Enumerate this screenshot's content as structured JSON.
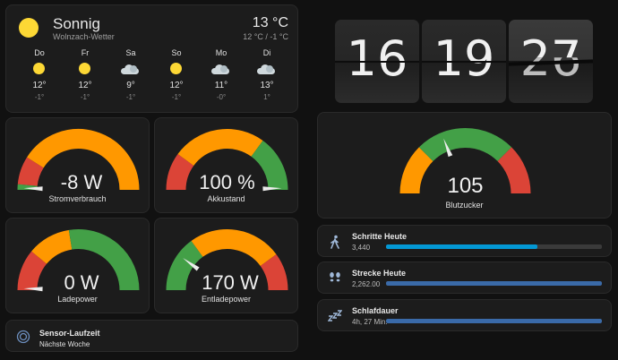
{
  "weather": {
    "condition": "Sonnig",
    "source": "Wolnzach-Wetter",
    "temperature": "13 °C",
    "range": "12 °C / -1 °C",
    "forecast": [
      {
        "day": "Do",
        "icon": "sun-icon",
        "high": "12°",
        "low": "-1°"
      },
      {
        "day": "Fr",
        "icon": "sun-icon",
        "high": "12°",
        "low": "-1°"
      },
      {
        "day": "Sa",
        "icon": "partly-cloudy-icon",
        "high": "9°",
        "low": "-1°"
      },
      {
        "day": "So",
        "icon": "sun-icon",
        "high": "12°",
        "low": "-1°"
      },
      {
        "day": "Mo",
        "icon": "partly-cloudy-icon",
        "high": "11°",
        "low": "-0°"
      },
      {
        "day": "Di",
        "icon": "partly-cloudy-icon",
        "high": "13°",
        "low": "1°"
      }
    ]
  },
  "clock": {
    "hours": "16",
    "minutes": "19",
    "seconds": "27",
    "seconds_prev": "26"
  },
  "gauges": {
    "stromverbrauch": {
      "value": "-8 W",
      "label": "Stromverbrauch"
    },
    "akkustand": {
      "value": "100 %",
      "label": "Akkustand"
    },
    "ladepower": {
      "value": "0 W",
      "label": "Ladepower"
    },
    "entladepower": {
      "value": "170 W",
      "label": "Entladepower"
    },
    "blutzucker": {
      "value": "105",
      "label": "Blutzucker"
    }
  },
  "bars": [
    {
      "title": "Schritte Heute",
      "value": "3,440",
      "icon": "walk-icon",
      "fill": 0.7,
      "color": "#0398d4"
    },
    {
      "title": "Strecke Heute",
      "value": "2,262.00",
      "icon": "footsteps-icon",
      "fill": 1.0,
      "color": "#3a6aa8"
    },
    {
      "title": "Schlafdauer",
      "value": "4h, 27 Min.",
      "icon": "sleep-icon",
      "fill": 1.0,
      "color": "#3a6aa8"
    }
  ],
  "sensor": {
    "title": "Sensor-Laufzeit",
    "subtitle": "Nächste Woche",
    "icon": "sensor-icon"
  },
  "colors": {
    "red": "#db4437",
    "orange": "#ff9800",
    "green": "#43a047",
    "needle": "#e0e0e0"
  }
}
